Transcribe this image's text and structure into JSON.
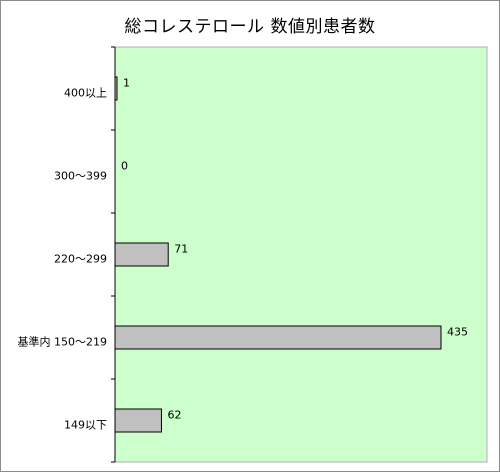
{
  "chart_data": {
    "type": "bar",
    "orientation": "horizontal",
    "title": "総コレステロール 数値別患者数",
    "categories": [
      "400以上",
      "300～399",
      "220～299",
      "基準内 150～219",
      "149以下"
    ],
    "values": [
      1,
      0,
      71,
      435,
      62
    ],
    "xlim": [
      0,
      435
    ],
    "grid": false,
    "legend": "none",
    "show_data_labels": true,
    "colors": {
      "plot_background": "#ccffcc",
      "bar_fill": "#c0c0c0",
      "bar_stroke": "#000000",
      "frame_border": "#8c8c8c"
    }
  }
}
